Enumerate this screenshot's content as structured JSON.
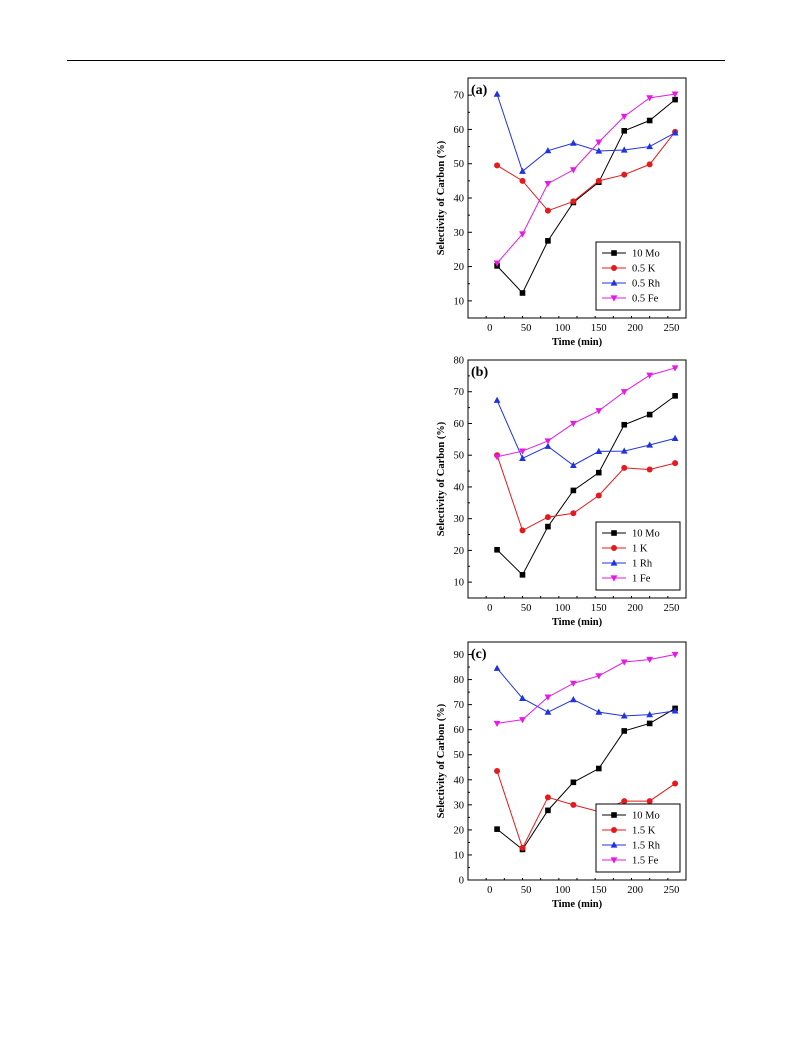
{
  "colors": {
    "mo": "#000000",
    "k": "#e41a1c",
    "rh": "#1f33e0",
    "fe": "#e619e6"
  },
  "chart_data": [
    {
      "type": "line",
      "panel_label": "(a)",
      "xlabel": "Time (min)",
      "ylabel": "Selectivity of Carbon (%)",
      "xlim": [
        -30,
        270
      ],
      "ylim": [
        5,
        75
      ],
      "xticks": [
        0,
        50,
        100,
        150,
        200,
        250
      ],
      "yticks": [
        10,
        20,
        30,
        40,
        50,
        60,
        70
      ],
      "x": [
        10,
        45,
        80,
        115,
        150,
        185,
        220,
        255
      ],
      "legend_position": "bottom-right",
      "grid": false,
      "series": [
        {
          "name": "10 Mo",
          "color": "#000000",
          "marker": "square",
          "values": [
            20.2,
            12.3,
            27.5,
            38.7,
            44.6,
            59.6,
            62.6,
            68.7
          ]
        },
        {
          "name": "0.5 K",
          "color": "#e41a1c",
          "marker": "circle",
          "values": [
            49.5,
            45.0,
            36.3,
            39.0,
            45.0,
            46.8,
            49.8,
            59.3
          ]
        },
        {
          "name": "0.5 Rh",
          "color": "#1f33e0",
          "marker": "triangle-up",
          "values": [
            70.3,
            47.8,
            53.8,
            56.0,
            53.7,
            54.0,
            55.0,
            59.0
          ]
        },
        {
          "name": "0.5 Fe",
          "color": "#e619e6",
          "marker": "triangle-down",
          "values": [
            21.0,
            29.5,
            44.2,
            48.2,
            56.3,
            63.8,
            69.2,
            70.3
          ]
        }
      ]
    },
    {
      "type": "line",
      "panel_label": "(b)",
      "xlabel": "Time (min)",
      "ylabel": "Selectivity of Carbon (%)",
      "xlim": [
        -30,
        270
      ],
      "ylim": [
        5,
        80
      ],
      "xticks": [
        0,
        50,
        100,
        150,
        200,
        250
      ],
      "yticks": [
        10,
        20,
        30,
        40,
        50,
        60,
        70,
        80
      ],
      "x": [
        10,
        45,
        80,
        115,
        150,
        185,
        220,
        255
      ],
      "legend_position": "bottom-right",
      "grid": false,
      "series": [
        {
          "name": "10 Mo",
          "color": "#000000",
          "marker": "square",
          "values": [
            20.2,
            12.3,
            27.5,
            38.9,
            44.5,
            59.6,
            62.8,
            68.7
          ]
        },
        {
          "name": "1 K",
          "color": "#e41a1c",
          "marker": "circle",
          "values": [
            50.0,
            26.3,
            30.5,
            31.7,
            37.3,
            46.0,
            45.5,
            47.5
          ]
        },
        {
          "name": "1 Rh",
          "color": "#1f33e0",
          "marker": "triangle-up",
          "values": [
            67.3,
            49.0,
            52.8,
            46.8,
            51.2,
            51.3,
            53.2,
            55.3
          ]
        },
        {
          "name": "1 Fe",
          "color": "#e619e6",
          "marker": "triangle-down",
          "values": [
            49.5,
            51.3,
            54.5,
            60.0,
            64.0,
            70.0,
            75.2,
            77.5
          ]
        }
      ]
    },
    {
      "type": "line",
      "panel_label": "(c)",
      "xlabel": "Time (min)",
      "ylabel": "Selectivity of Carbon (%)",
      "xlim": [
        -30,
        270
      ],
      "ylim": [
        0,
        95
      ],
      "xticks": [
        0,
        50,
        100,
        150,
        200,
        250
      ],
      "yticks": [
        0,
        10,
        20,
        30,
        40,
        50,
        60,
        70,
        80,
        90
      ],
      "x": [
        10,
        45,
        80,
        115,
        150,
        185,
        220,
        255
      ],
      "legend_position": "bottom-right",
      "grid": false,
      "series": [
        {
          "name": "10 Mo",
          "color": "#000000",
          "marker": "square",
          "values": [
            20.3,
            12.2,
            27.8,
            39.0,
            44.5,
            59.5,
            62.5,
            68.5
          ]
        },
        {
          "name": "1.5 K",
          "color": "#e41a1c",
          "marker": "circle",
          "values": [
            43.5,
            12.8,
            33.0,
            30.0,
            27.3,
            31.5,
            31.5,
            38.5
          ]
        },
        {
          "name": "1.5 Rh",
          "color": "#1f33e0",
          "marker": "triangle-up",
          "values": [
            84.5,
            72.5,
            67.0,
            72.0,
            67.0,
            65.5,
            66.0,
            67.5
          ]
        },
        {
          "name": "1.5 Fe",
          "color": "#e619e6",
          "marker": "triangle-down",
          "values": [
            62.5,
            64.0,
            73.0,
            78.5,
            81.5,
            87.0,
            88.0,
            90.0
          ]
        }
      ]
    }
  ]
}
